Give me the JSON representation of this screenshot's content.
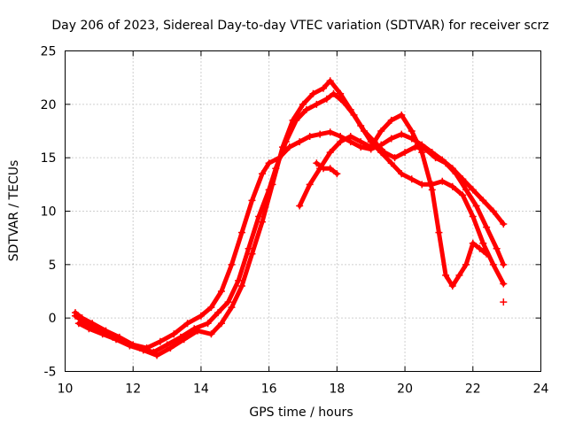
{
  "chart_data": {
    "type": "scatter",
    "title": "Day 206 of 2023, Sidereal Day-to-day VTEC variation (SDTVAR) for receiver scrz",
    "xlabel": "GPS time / hours",
    "ylabel": "SDTVAR / TECUs",
    "xlim": [
      10,
      24
    ],
    "ylim": [
      -5,
      25
    ],
    "xticks": [
      "10",
      "12",
      "14",
      "16",
      "18",
      "20",
      "22",
      "24"
    ],
    "yticks": [
      "-5",
      "0",
      "5",
      "10",
      "15",
      "20",
      "25"
    ],
    "grid": true,
    "marker": "+",
    "color": "#ff0000",
    "series": [
      {
        "name": "trace-1",
        "x": [
          10.3,
          10.5,
          10.8,
          11.2,
          11.6,
          12.0,
          12.4,
          12.8,
          13.2,
          13.6,
          14.0,
          14.3,
          14.6,
          14.9,
          15.2,
          15.5,
          15.8,
          16.0,
          16.3,
          16.6,
          16.9,
          17.2,
          17.5,
          17.8,
          18.1,
          18.4,
          18.7,
          19.0,
          19.3,
          19.6,
          19.9,
          20.2,
          20.5,
          20.8,
          21.1,
          21.4,
          21.7,
          22.0,
          22.3,
          22.6,
          22.9
        ],
        "y": [
          0.5,
          0.0,
          -0.5,
          -1.2,
          -1.8,
          -2.5,
          -2.8,
          -2.2,
          -1.5,
          -0.5,
          0.2,
          1.0,
          2.5,
          5.0,
          8.0,
          11.0,
          13.5,
          14.5,
          15.0,
          16.0,
          16.5,
          17.0,
          17.2,
          17.4,
          17.0,
          16.5,
          16.0,
          15.8,
          16.2,
          16.8,
          17.2,
          16.8,
          16.2,
          15.5,
          14.8,
          14.0,
          13.0,
          12.0,
          11.0,
          10.0,
          8.8
        ]
      },
      {
        "name": "trace-2",
        "x": [
          10.3,
          10.6,
          11.0,
          11.4,
          11.8,
          12.2,
          12.6,
          13.0,
          13.4,
          13.8,
          14.2,
          14.5,
          14.8,
          15.1,
          15.4,
          15.7,
          16.0,
          16.2,
          16.5,
          16.8,
          17.1,
          17.4,
          17.7,
          17.9,
          18.2,
          18.5,
          18.8,
          19.1,
          19.4,
          19.7,
          20.0,
          20.3,
          20.6,
          20.9,
          21.2,
          21.5,
          21.8,
          22.1,
          22.4,
          22.7,
          22.9
        ],
        "y": [
          0.2,
          -0.5,
          -1.0,
          -1.8,
          -2.3,
          -2.8,
          -3.2,
          -2.5,
          -1.8,
          -1.0,
          -0.5,
          0.5,
          1.5,
          3.5,
          6.5,
          9.5,
          12.0,
          14.0,
          16.5,
          18.5,
          19.5,
          20.0,
          20.5,
          21.0,
          20.2,
          19.0,
          17.5,
          16.5,
          15.5,
          15.0,
          15.5,
          16.0,
          15.8,
          15.0,
          14.5,
          13.5,
          12.0,
          10.5,
          8.5,
          6.5,
          5.0
        ]
      },
      {
        "name": "trace-3",
        "x": [
          10.4,
          10.7,
          11.1,
          11.5,
          11.9,
          12.3,
          12.7,
          13.1,
          13.5,
          13.9,
          14.3,
          14.6,
          14.9,
          15.2,
          15.5,
          15.8,
          16.1,
          16.4,
          16.7,
          17.0,
          17.3,
          17.6,
          17.8,
          18.1,
          18.4,
          18.7,
          19.0,
          19.3,
          19.6,
          19.9,
          20.2,
          20.5,
          20.8,
          21.1,
          21.4,
          21.7,
          22.0,
          22.3,
          22.6,
          22.9
        ],
        "y": [
          -0.5,
          -1.0,
          -1.5,
          -2.0,
          -2.6,
          -3.0,
          -3.5,
          -2.8,
          -2.0,
          -1.2,
          -1.5,
          -0.5,
          1.0,
          3.0,
          6.0,
          9.0,
          12.5,
          16.0,
          18.5,
          20.0,
          21.0,
          21.5,
          22.2,
          21.0,
          19.5,
          18.0,
          16.5,
          15.5,
          14.5,
          13.5,
          13.0,
          12.5,
          12.5,
          12.8,
          12.3,
          11.5,
          9.5,
          7.0,
          5.0,
          3.2
        ]
      },
      {
        "name": "trace-4",
        "x": [
          16.9,
          17.2,
          17.5,
          17.8,
          18.1,
          18.4,
          18.7,
          19.0,
          19.3,
          19.6,
          19.9,
          20.2,
          20.5,
          20.8,
          21.0,
          21.2,
          21.4,
          21.6,
          21.8,
          22.0,
          22.2,
          22.4
        ],
        "y": [
          10.5,
          12.5,
          14.0,
          15.5,
          16.5,
          17.0,
          16.5,
          16.0,
          17.5,
          18.5,
          19.0,
          17.5,
          15.5,
          12.0,
          8.0,
          4.0,
          3.0,
          4.0,
          5.0,
          7.0,
          6.5,
          6.0
        ]
      },
      {
        "name": "trace-5",
        "x": [
          17.4,
          17.6,
          17.8,
          18.0
        ],
        "y": [
          14.5,
          14.0,
          14.0,
          13.5
        ]
      },
      {
        "name": "trace-6",
        "x": [
          22.9
        ],
        "y": [
          1.5
        ]
      }
    ]
  }
}
